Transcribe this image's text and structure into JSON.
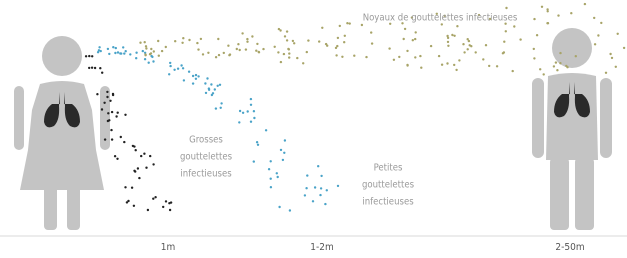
{
  "labels": {
    "aerosol": "Noyaux de gouttelettes infectieuses",
    "large": [
      "Grosses",
      "gouttelettes",
      "infectieuses"
    ],
    "small": [
      "Petites",
      "gouttelettes",
      "infectieuses"
    ]
  },
  "distances": [
    "1m",
    "1-2m",
    "2-50m"
  ]
}
